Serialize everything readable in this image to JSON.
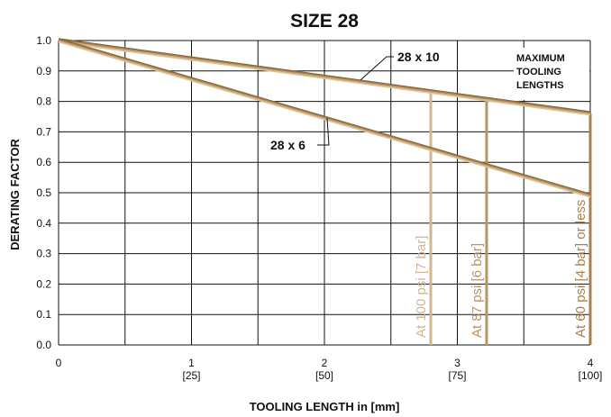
{
  "chart_data": {
    "type": "line",
    "title": "SIZE 28",
    "xlabel": "TOOLING LENGTH  in [mm]",
    "ylabel": "DERATING FACTOR",
    "xlim": [
      0,
      4
    ],
    "ylim": [
      0,
      1.0
    ],
    "x_ticks": [
      {
        "value": 0,
        "label": "0",
        "sub": ""
      },
      {
        "value": 1,
        "label": "1",
        "sub": "[25]"
      },
      {
        "value": 2,
        "label": "2",
        "sub": "[50]"
      },
      {
        "value": 3,
        "label": "3",
        "sub": "[75]"
      },
      {
        "value": 4,
        "label": "4",
        "sub": "[100]"
      }
    ],
    "y_ticks": [
      "0.0",
      "0.1",
      "0.2",
      "0.3",
      "0.4",
      "0.5",
      "0.6",
      "0.7",
      "0.8",
      "0.9",
      "1.0"
    ],
    "grid": true,
    "note": [
      "MAXIMUM",
      "TOOLING",
      "LENGTHS"
    ],
    "series": [
      {
        "name": "28 x 10",
        "x": [
          0,
          4
        ],
        "y": [
          1.0,
          0.76
        ],
        "color": "#a8804e"
      },
      {
        "name": "28 x 6",
        "x": [
          0,
          4
        ],
        "y": [
          1.0,
          0.49
        ],
        "color": "#a8804e"
      }
    ],
    "pressure_limits": [
      {
        "label": "At 100 psi [7 bar]",
        "x": 2.8,
        "color": "#d0b694"
      },
      {
        "label": "At 87 psi [6 bar]",
        "x": 3.22,
        "color": "#b89468"
      },
      {
        "label": "At 60 psi [4 bar] or less",
        "x": 4.0,
        "color": "#a8804e"
      }
    ]
  }
}
